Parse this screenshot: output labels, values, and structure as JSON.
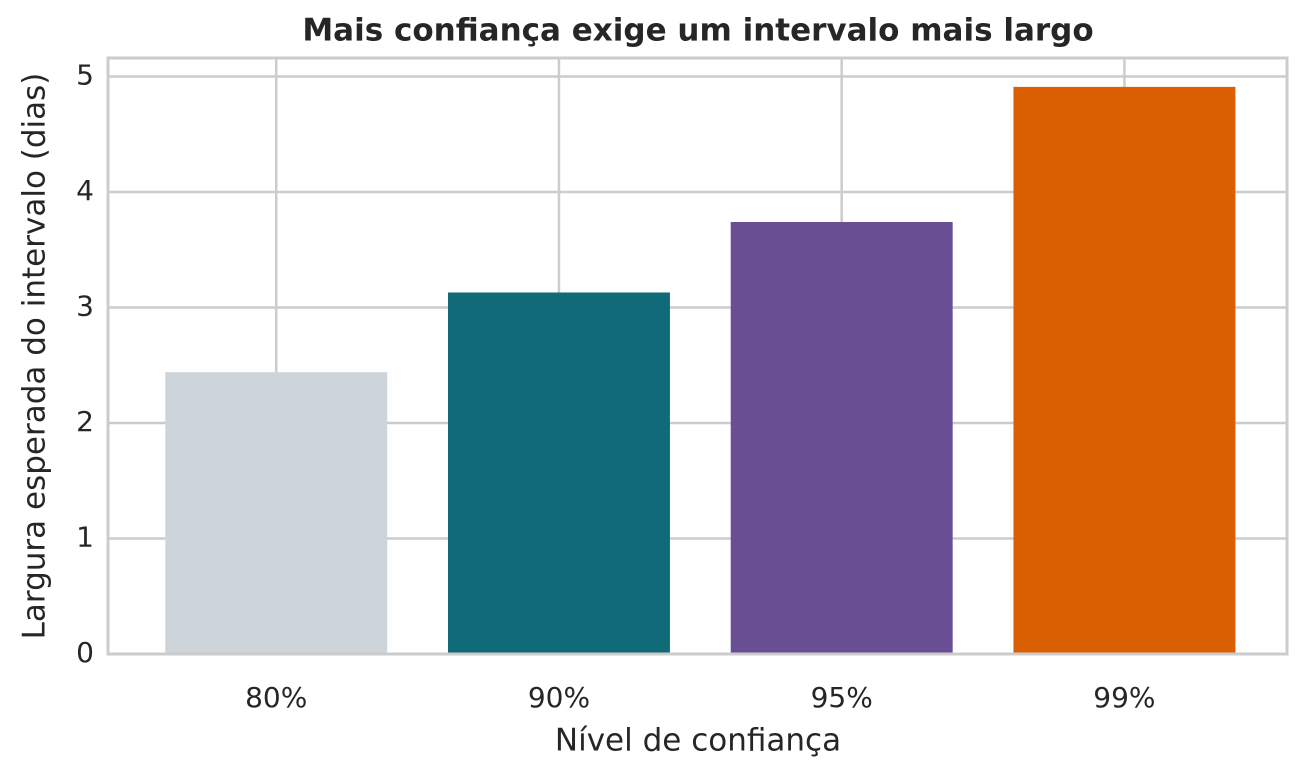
{
  "chart_data": {
    "type": "bar",
    "title": "Mais confiança exige um intervalo mais largo",
    "x_label": "Nível de confiança",
    "y_label": "Largura esperada do intervalo (dias)",
    "categories": [
      "80%",
      "90%",
      "95%",
      "99%"
    ],
    "values": [
      2.44,
      3.13,
      3.74,
      4.91
    ],
    "colors": [
      "#cdd5db",
      "#116a78",
      "#6a4e94",
      "#d95f02"
    ],
    "ylim": [
      0,
      5.16
    ],
    "yticks": [
      0,
      1,
      2,
      3,
      4,
      5
    ],
    "grid": true
  }
}
